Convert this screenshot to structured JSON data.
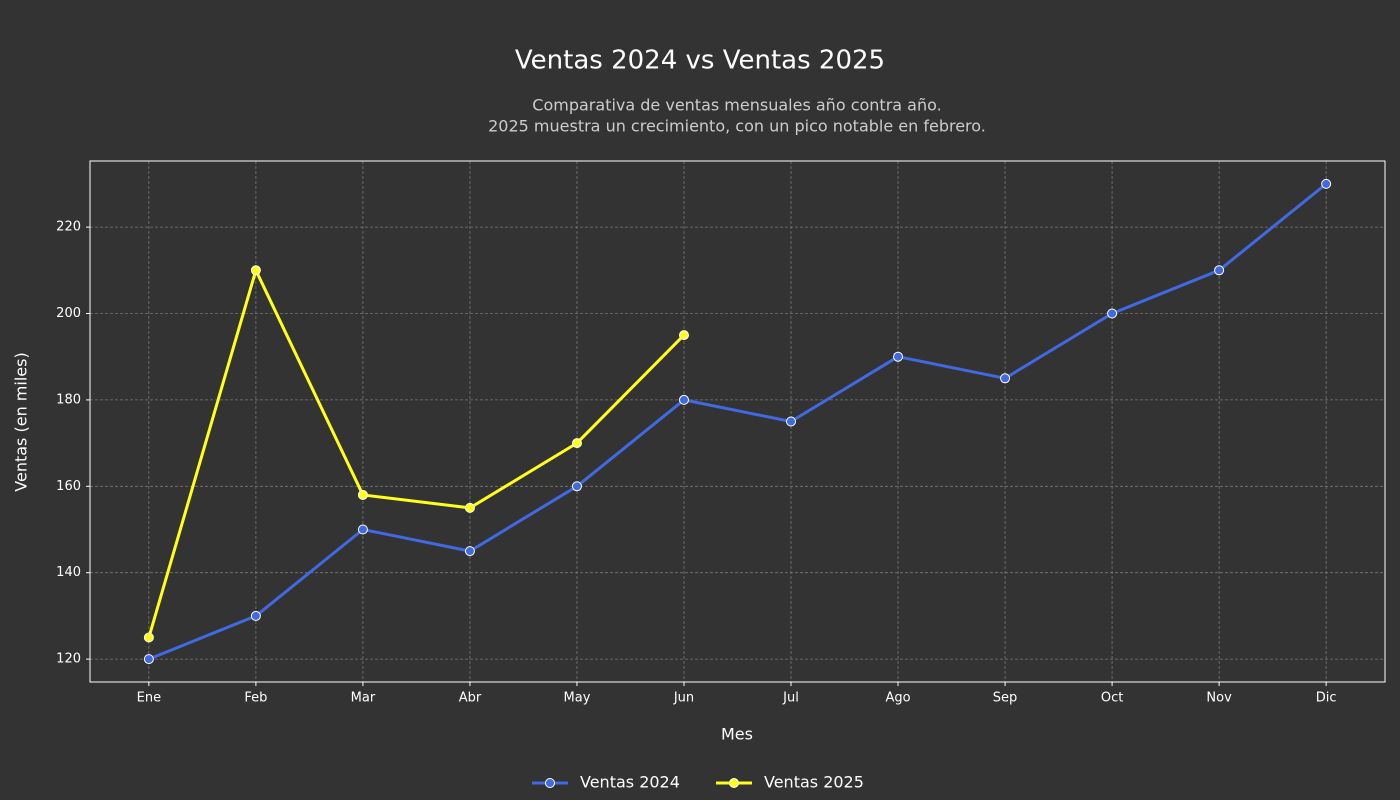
{
  "chart_data": {
    "type": "line",
    "title": "Ventas 2024 vs Ventas 2025",
    "subtitle": [
      "Comparativa de ventas mensuales año contra año.",
      "2025 muestra un crecimiento, con un pico notable en febrero."
    ],
    "x_label": "Mes",
    "y_label": "Ventas (en miles)",
    "categories": [
      "Ene",
      "Feb",
      "Mar",
      "Abr",
      "May",
      "Jun",
      "Jul",
      "Ago",
      "Sep",
      "Oct",
      "Nov",
      "Dic"
    ],
    "series": [
      {
        "name": "Ventas 2024",
        "color": "#4169e1",
        "values": [
          120,
          130,
          150,
          145,
          160,
          180,
          175,
          190,
          185,
          200,
          210,
          230
        ]
      },
      {
        "name": "Ventas 2025",
        "color": "#ffff1a",
        "values": [
          125,
          210,
          158,
          155,
          170,
          195,
          null,
          null,
          null,
          null,
          null,
          null
        ]
      }
    ],
    "ylim": [
      114.7,
      235.3
    ],
    "yticks": [
      120,
      140,
      160,
      180,
      200,
      220
    ],
    "grid": true,
    "legend": "bottom"
  }
}
